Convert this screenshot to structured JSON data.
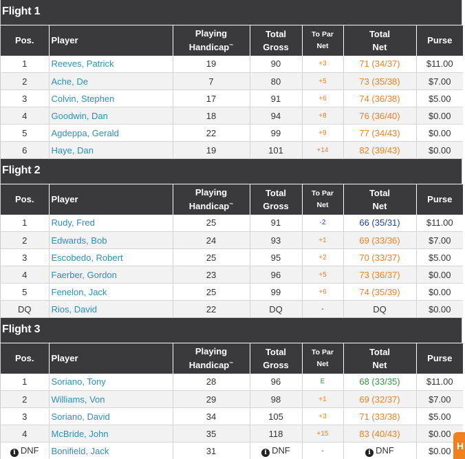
{
  "headers": {
    "pos": "Pos.",
    "player": "Player",
    "handicap_line1": "Playing",
    "handicap_line2": "Handicap",
    "handicap_tm": "™",
    "gross_line1": "Total",
    "gross_line2": "Gross",
    "topar_line1": "To Par",
    "topar_line2": "Net",
    "net_line1": "Total",
    "net_line2": "Net",
    "purse": "Purse"
  },
  "colors": {
    "header_bg": "#3a3a3d",
    "player_link": "#2a8fbd",
    "over_par": "#f07f1e",
    "under_par": "#1c3fa8",
    "even_par": "#2c9a3a"
  },
  "flights": [
    {
      "title": "Flight 1",
      "rows": [
        {
          "pos": "1",
          "player": "Reeves, Patrick",
          "handicap": "19",
          "gross": "90",
          "topar": "+3",
          "net": "71 (34/37)",
          "purse": "$11.00",
          "tone": "over"
        },
        {
          "pos": "2",
          "player": "Ache, De",
          "handicap": "7",
          "gross": "80",
          "topar": "+5",
          "net": "73 (35/38)",
          "purse": "$7.00",
          "tone": "over"
        },
        {
          "pos": "3",
          "player": "Colvin, Stephen",
          "handicap": "17",
          "gross": "91",
          "topar": "+6",
          "net": "74 (36/38)",
          "purse": "$5.00",
          "tone": "over"
        },
        {
          "pos": "4",
          "player": "Goodwin, Dan",
          "handicap": "18",
          "gross": "94",
          "topar": "+8",
          "net": "76 (36/40)",
          "purse": "$0.00",
          "tone": "over"
        },
        {
          "pos": "5",
          "player": "Agdeppa, Gerald",
          "handicap": "22",
          "gross": "99",
          "topar": "+9",
          "net": "77 (34/43)",
          "purse": "$0.00",
          "tone": "over"
        },
        {
          "pos": "6",
          "player": "Haye, Dan",
          "handicap": "19",
          "gross": "101",
          "topar": "+14",
          "net": "82 (39/43)",
          "purse": "$0.00",
          "tone": "over"
        }
      ]
    },
    {
      "title": "Flight 2",
      "rows": [
        {
          "pos": "1",
          "player": "Rudy, Fred",
          "handicap": "25",
          "gross": "91",
          "topar": "-2",
          "net": "66 (35/31)",
          "purse": "$11.00",
          "tone": "under"
        },
        {
          "pos": "2",
          "player": "Edwards, Bob",
          "handicap": "24",
          "gross": "93",
          "topar": "+1",
          "net": "69 (33/36)",
          "purse": "$7.00",
          "tone": "over"
        },
        {
          "pos": "3",
          "player": "Escobedo, Robert",
          "handicap": "25",
          "gross": "95",
          "topar": "+2",
          "net": "70 (33/37)",
          "purse": "$5.00",
          "tone": "over"
        },
        {
          "pos": "4",
          "player": "Faerber, Gordon",
          "handicap": "23",
          "gross": "96",
          "topar": "+5",
          "net": "73 (36/37)",
          "purse": "$0.00",
          "tone": "over"
        },
        {
          "pos": "5",
          "player": "Fenelon, Jack",
          "handicap": "25",
          "gross": "99",
          "topar": "+6",
          "net": "74 (35/39)",
          "purse": "$0.00",
          "tone": "over"
        },
        {
          "pos": "DQ",
          "player": "Rios, David",
          "handicap": "22",
          "gross": "DQ",
          "topar": "-",
          "net": "DQ",
          "purse": "$0.00",
          "tone": "dash"
        }
      ]
    },
    {
      "title": "Flight 3",
      "rows": [
        {
          "pos": "1",
          "player": "Soriano, Tony",
          "handicap": "28",
          "gross": "96",
          "topar": "E",
          "net": "68 (33/35)",
          "purse": "$11.00",
          "tone": "even"
        },
        {
          "pos": "2",
          "player": "Williams, Von",
          "handicap": "29",
          "gross": "98",
          "topar": "+1",
          "net": "69 (32/37)",
          "purse": "$7.00",
          "tone": "over"
        },
        {
          "pos": "3",
          "player": "Soriano, David",
          "handicap": "34",
          "gross": "105",
          "topar": "+3",
          "net": "71 (33/38)",
          "purse": "$5.00",
          "tone": "over"
        },
        {
          "pos": "4",
          "player": "McBride, John",
          "handicap": "35",
          "gross": "118",
          "topar": "+15",
          "net": "83 (40/43)",
          "purse": "$0.00",
          "tone": "over"
        },
        {
          "pos": "DNF",
          "player": "Bonifield, Jack",
          "handicap": "31",
          "gross": "DNF",
          "topar": "-",
          "net": "DNF",
          "purse": "$0.00",
          "tone": "dash",
          "info_icons": true
        }
      ]
    }
  ],
  "help_tab_label": "H"
}
